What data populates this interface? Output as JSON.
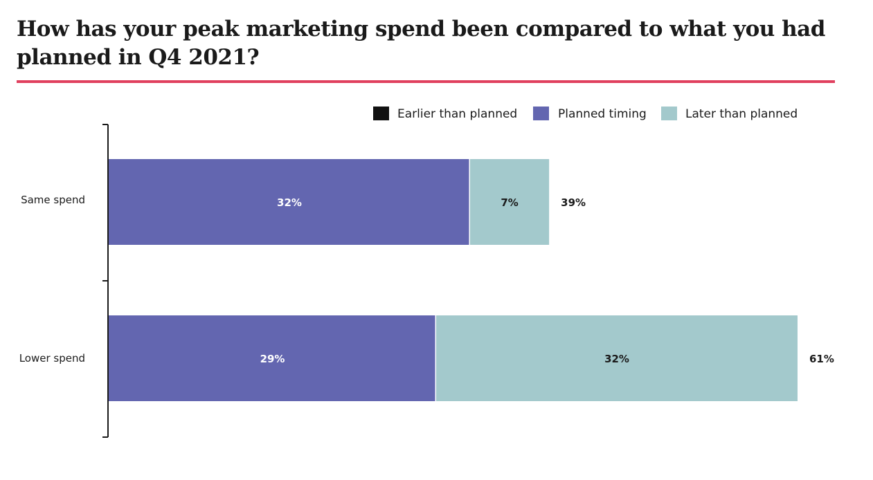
{
  "title": "How has your peak marketing spend been compared to what you had planned in Q4 2021?",
  "colors": {
    "accent_rule": "#e0405e",
    "earlier": "#111111",
    "planned": "#6366b0",
    "later": "#a3c9cc",
    "axis": "#1a1a1a"
  },
  "chart_data": {
    "type": "bar",
    "orientation": "horizontal",
    "stacked": true,
    "categories": [
      "Same spend",
      "Lower spend"
    ],
    "series": [
      {
        "name": "Earlier than planned",
        "values": [
          0,
          0
        ],
        "color": "#111111"
      },
      {
        "name": "Planned timing",
        "values": [
          32,
          29
        ],
        "color": "#6366b0"
      },
      {
        "name": "Later than planned",
        "values": [
          7,
          32
        ],
        "color": "#a3c9cc"
      }
    ],
    "totals": [
      39,
      61
    ],
    "value_labels": [
      [
        "32%",
        "7%"
      ],
      [
        "29%",
        "32%"
      ]
    ],
    "total_labels": [
      "39%",
      "61%"
    ],
    "xlim": [
      0,
      61
    ],
    "grid": false,
    "legend_position": "top-right"
  }
}
